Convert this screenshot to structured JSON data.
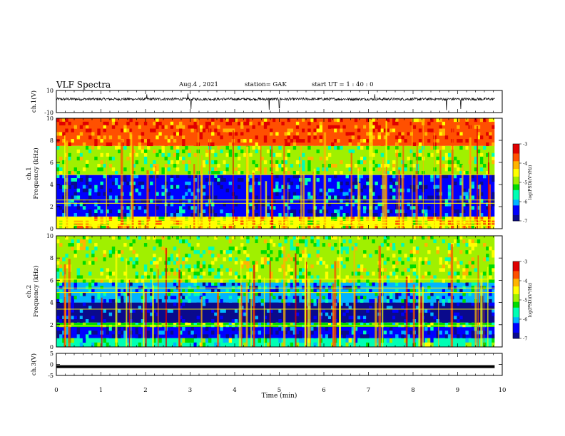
{
  "header": {
    "title": "VLF Spectra",
    "date": "Aug.4 , 2021",
    "station": "station= GAK",
    "start_ut": "start UT = 1 : 40 : 0"
  },
  "chart_data": [
    {
      "type": "line",
      "name": "ch1-waveform",
      "ylabel": "ch.1(V)",
      "ylim": [
        -10,
        10
      ],
      "yticks": [
        "10",
        "-10"
      ],
      "xlim": [
        0,
        10
      ],
      "baseline_v": 2.2,
      "noise_amplitude_v": 1.2,
      "spikes_v": [
        [
          2.03,
          6.5
        ],
        [
          2.95,
          7.2
        ],
        [
          3.02,
          -6.8
        ],
        [
          4.77,
          -7.5
        ],
        [
          5.0,
          -6.0
        ],
        [
          7.14,
          6.6
        ],
        [
          8.75,
          -7.8
        ],
        [
          9.07,
          -6.8
        ]
      ],
      "color": "#000000"
    },
    {
      "type": "heatmap",
      "name": "ch1-spectrogram",
      "ylabel": "ch.1\nFrequency (kHz)",
      "ylim": [
        0,
        10
      ],
      "yticks": [
        "0",
        "2",
        "4",
        "6",
        "8",
        "10"
      ],
      "xlim": [
        0,
        9.83
      ],
      "colorbar": {
        "label": "log(PSD)(V²/Hz)",
        "range": [
          -7,
          -3
        ],
        "ticks": [
          "-3",
          "-4",
          "-5",
          "-6",
          "-7"
        ]
      },
      "bands_log_psd": [
        {
          "from_khz": 0.0,
          "to_khz": 1.1,
          "value": -4.3
        },
        {
          "from_khz": 1.1,
          "to_khz": 4.9,
          "value": -6.4
        },
        {
          "from_khz": 4.9,
          "to_khz": 7.5,
          "value": -4.9
        },
        {
          "from_khz": 7.5,
          "to_khz": 10.0,
          "value": -3.5
        }
      ],
      "tones_khz": [
        0.3,
        0.55,
        0.8,
        2.3,
        2.6,
        4.9
      ]
    },
    {
      "type": "heatmap",
      "name": "ch2-spectrogram",
      "ylabel": "ch.2\nFrequency (kHz)",
      "ylim": [
        0,
        10
      ],
      "yticks": [
        "0",
        "2",
        "4",
        "6",
        "8",
        "10"
      ],
      "xlim": [
        0,
        9.83
      ],
      "colorbar": {
        "label": "log(PSD)(V²/Hz)",
        "range": [
          -7,
          -3
        ],
        "ticks": [
          "-3",
          "-4",
          "-5",
          "-6",
          "-7"
        ]
      },
      "bands_log_psd": [
        {
          "from_khz": 0.0,
          "to_khz": 0.8,
          "value": -5.4
        },
        {
          "from_khz": 0.8,
          "to_khz": 1.8,
          "value": -6.6
        },
        {
          "from_khz": 1.8,
          "to_khz": 2.2,
          "value": -5.2
        },
        {
          "from_khz": 2.2,
          "to_khz": 4.0,
          "value": -6.8
        },
        {
          "from_khz": 4.0,
          "to_khz": 5.8,
          "value": -6.0
        },
        {
          "from_khz": 5.8,
          "to_khz": 10.0,
          "value": -4.9
        }
      ],
      "tones_khz": [
        1.9,
        3.4,
        4.9,
        5.3,
        6.1
      ]
    },
    {
      "type": "line",
      "name": "ch3-waveform",
      "ylabel": "ch.3(V)",
      "ylim": [
        -5,
        5
      ],
      "yticks": [
        "5",
        "0",
        "-5"
      ],
      "xlim": [
        0,
        9.83
      ],
      "constant_v": -1.0,
      "color": "#000000"
    }
  ],
  "x_axis": {
    "label": "Time (min)",
    "range": [
      0,
      10
    ],
    "ticks": [
      "0",
      "1",
      "2",
      "3",
      "4",
      "5",
      "6",
      "7",
      "8",
      "9",
      "10"
    ]
  },
  "colormap": [
    "#000000",
    "#0a0a8c",
    "#0000ff",
    "#00b4ff",
    "#00ffb4",
    "#00dc00",
    "#a0f000",
    "#ffff00",
    "#ffb400",
    "#ff5000",
    "#e00000",
    "#ffffff"
  ]
}
